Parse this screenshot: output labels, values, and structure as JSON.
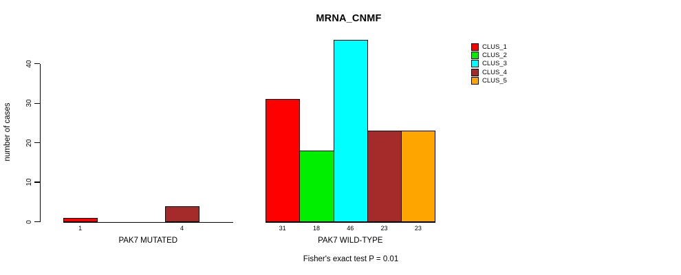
{
  "chart_data": {
    "type": "bar",
    "title": "MRNA_CNMF",
    "ylabel": "number of cases",
    "xlabel": "",
    "ylim": [
      0,
      46
    ],
    "yticks": [
      0,
      10,
      20,
      30,
      40
    ],
    "grid": false,
    "legend_position": "top-right",
    "series": [
      {
        "name": "CLUS_1",
        "color": "#ff0000"
      },
      {
        "name": "CLUS_2",
        "color": "#00ee00"
      },
      {
        "name": "CLUS_3",
        "color": "#00ffff"
      },
      {
        "name": "CLUS_4",
        "color": "#a52a2a"
      },
      {
        "name": "CLUS_5",
        "color": "#ffa500"
      }
    ],
    "groups": [
      {
        "label": "PAK7 MUTATED",
        "values": [
          1,
          0,
          0,
          4,
          0
        ]
      },
      {
        "label": "PAK7 WILD-TYPE",
        "values": [
          31,
          18,
          46,
          23,
          23
        ]
      }
    ],
    "footnote": "Fisher's exact test P = 0.01"
  }
}
